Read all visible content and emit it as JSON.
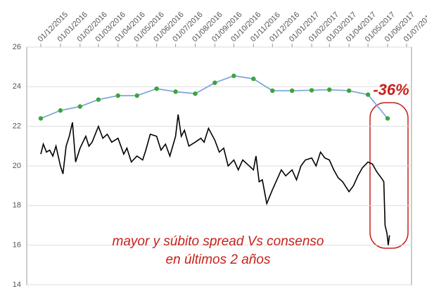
{
  "chart_data": {
    "type": "line",
    "xticks": [
      "01/12/2015",
      "01/01/2016",
      "01/02/2016",
      "01/03/2016",
      "01/04/2016",
      "01/05/2016",
      "01/06/2016",
      "01/07/2016",
      "01/08/2016",
      "01/09/2016",
      "01/10/2016",
      "01/11/2016",
      "01/12/2016",
      "01/01/2017",
      "01/02/2017",
      "01/03/2017",
      "01/04/2017",
      "01/05/2017",
      "01/06/2017",
      "01/07/2017"
    ],
    "ylim": [
      14,
      26
    ],
    "yticks": [
      14,
      16,
      18,
      20,
      22,
      24,
      26
    ],
    "grid": true,
    "series": [
      {
        "color": "#80a8da",
        "marker_color": "#3aa63a",
        "x": [
          "01/12/2015",
          "01/01/2016",
          "01/02/2016",
          "01/03/2016",
          "01/04/2016",
          "01/05/2016",
          "01/06/2016",
          "01/07/2016",
          "01/08/2016",
          "01/09/2016",
          "01/10/2016",
          "01/11/2016",
          "01/12/2016",
          "01/01/2017",
          "01/02/2017",
          "01/03/2017",
          "01/04/2017",
          "01/05/2017",
          "01/06/2017"
        ],
        "values": [
          22.4,
          22.8,
          23.0,
          23.35,
          23.55,
          23.55,
          23.9,
          23.75,
          23.65,
          24.2,
          24.55,
          24.4,
          23.8,
          23.8,
          23.82,
          23.85,
          23.8,
          23.6,
          22.4
        ]
      },
      {
        "color": "#000000",
        "x": [
          "01/12/2015",
          "05/12/2015",
          "10/12/2015",
          "15/12/2015",
          "20/12/2015",
          "25/12/2015",
          "01/01/2016",
          "05/01/2016",
          "10/01/2016",
          "15/01/2016",
          "20/01/2016",
          "25/01/2016",
          "01/02/2016",
          "10/02/2016",
          "15/02/2016",
          "20/02/2016",
          "01/03/2016",
          "08/03/2016",
          "15/03/2016",
          "22/03/2016",
          "01/04/2016",
          "10/04/2016",
          "15/04/2016",
          "22/04/2016",
          "01/05/2016",
          "10/05/2016",
          "15/05/2016",
          "22/05/2016",
          "01/06/2016",
          "08/06/2016",
          "15/06/2016",
          "22/06/2016",
          "01/07/2016",
          "05/07/2016",
          "10/07/2016",
          "15/07/2016",
          "22/07/2016",
          "01/08/2016",
          "10/08/2016",
          "15/08/2016",
          "22/08/2016",
          "01/09/2016",
          "08/09/2016",
          "15/09/2016",
          "22/09/2016",
          "01/10/2016",
          "08/10/2016",
          "15/10/2016",
          "22/10/2016",
          "01/11/2016",
          "05/11/2016",
          "10/11/2016",
          "15/11/2016",
          "22/11/2016",
          "01/12/2016",
          "08/12/2016",
          "15/12/2016",
          "22/12/2016",
          "01/01/2017",
          "08/01/2017",
          "15/01/2017",
          "22/01/2017",
          "01/02/2017",
          "08/02/2017",
          "15/02/2017",
          "22/02/2017",
          "01/03/2017",
          "08/03/2017",
          "15/03/2017",
          "22/03/2017",
          "01/04/2017",
          "08/04/2017",
          "15/04/2017",
          "22/04/2017",
          "01/05/2017",
          "08/05/2017",
          "15/05/2017",
          "22/05/2017",
          "26/05/2017",
          "28/05/2017",
          "31/05/2017",
          "02/06/2017",
          "04/06/2017"
        ],
        "values": [
          20.6,
          21.1,
          20.7,
          20.8,
          20.5,
          21.0,
          20.0,
          19.6,
          21.0,
          21.5,
          22.2,
          20.2,
          20.9,
          21.5,
          21.0,
          21.2,
          22.0,
          21.4,
          21.6,
          21.2,
          21.4,
          20.6,
          20.9,
          20.2,
          20.5,
          20.3,
          20.8,
          21.6,
          21.5,
          20.8,
          21.1,
          20.5,
          21.5,
          22.6,
          21.5,
          21.8,
          21.0,
          21.2,
          21.4,
          21.2,
          21.9,
          21.3,
          20.7,
          20.9,
          20.0,
          20.3,
          19.8,
          20.3,
          20.1,
          19.8,
          20.5,
          19.2,
          19.3,
          18.1,
          18.8,
          19.3,
          19.8,
          19.5,
          19.8,
          19.3,
          20.0,
          20.3,
          20.4,
          20.0,
          20.7,
          20.4,
          20.3,
          19.8,
          19.4,
          19.2,
          18.7,
          19.0,
          19.5,
          19.9,
          20.2,
          20.1,
          19.7,
          19.4,
          19.2,
          17.0,
          16.6,
          16.0,
          16.5
        ]
      }
    ],
    "annotations": [
      "-36%",
      "mayor y súbito spread Vs consenso",
      "en últimos 2 años"
    ]
  }
}
